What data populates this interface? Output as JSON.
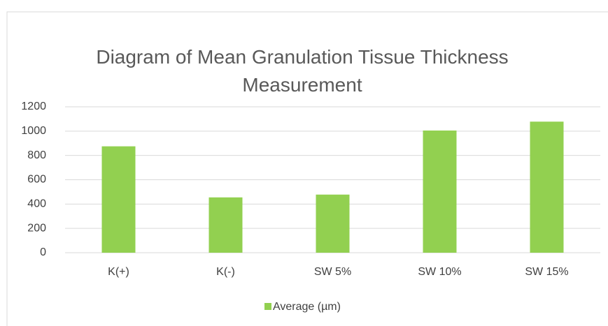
{
  "chart_data": {
    "type": "bar",
    "title": "Diagram of Mean Granulation Tissue Thickness Measurement",
    "categories": [
      "K(+)",
      "K(-)",
      "SW 5%",
      "SW 10%",
      "SW 15%"
    ],
    "series": [
      {
        "name": "Average (µm)",
        "color": "#92d050",
        "values": [
          875,
          455,
          478,
          1005,
          1078
        ]
      }
    ],
    "ylim": [
      0,
      1200
    ],
    "yticks": [
      0,
      200,
      400,
      600,
      800,
      1000,
      1200
    ],
    "grid": true,
    "legend": "bottom"
  }
}
